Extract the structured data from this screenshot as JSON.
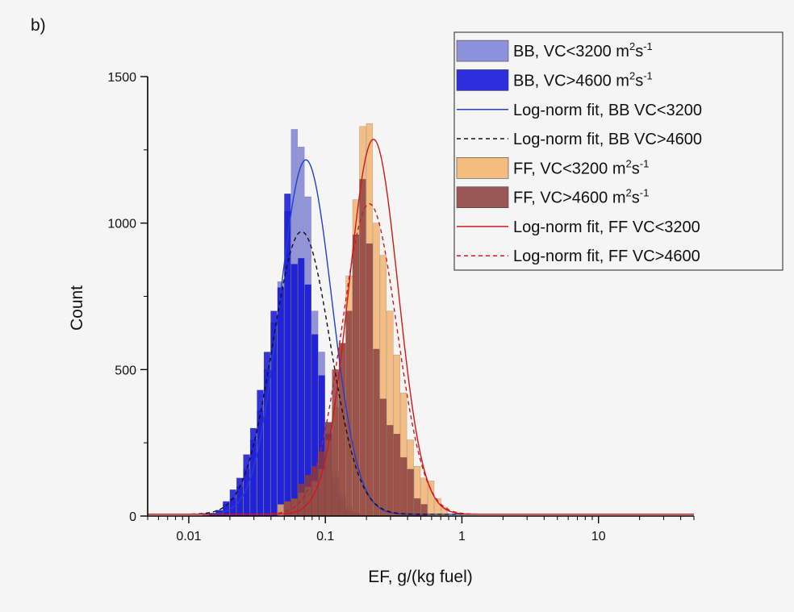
{
  "panel_label": "b)",
  "chart_data": {
    "type": "bar",
    "xscale": "log",
    "xlabel": "EF, g/(kg fuel)",
    "ylabel": "Count",
    "xlim": [
      0.005,
      50
    ],
    "ylim": [
      0,
      1500
    ],
    "xticks": [
      {
        "value": 0.01,
        "label": "0.01"
      },
      {
        "value": 0.1,
        "label": "0.1"
      },
      {
        "value": 1,
        "label": "1"
      },
      {
        "value": 10,
        "label": "10"
      }
    ],
    "yticks": [
      {
        "value": 0,
        "label": "0"
      },
      {
        "value": 500,
        "label": "500"
      },
      {
        "value": 1000,
        "label": "1000"
      },
      {
        "value": 1500,
        "label": "1500"
      }
    ],
    "grid": false,
    "legend_position": "top-right",
    "bin_edges": [
      0.0126,
      0.0141,
      0.0158,
      0.0178,
      0.02,
      0.0224,
      0.0251,
      0.0282,
      0.0316,
      0.0355,
      0.0398,
      0.0447,
      0.0501,
      0.0562,
      0.0631,
      0.0708,
      0.0794,
      0.0891,
      0.1,
      0.1122,
      0.1259,
      0.1413,
      0.1585,
      0.1778,
      0.1995,
      0.2239,
      0.2512,
      0.2818,
      0.3162,
      0.3548,
      0.3981,
      0.4467,
      0.5012,
      0.5623,
      0.631,
      0.7079,
      0.7943,
      0.8913,
      1.0
    ],
    "histograms": [
      {
        "name": "BB, VC<3200 m²s⁻¹",
        "color": "#7b7fd6",
        "counts": [
          10,
          10,
          20,
          40,
          60,
          100,
          160,
          260,
          360,
          500,
          660,
          800,
          1040,
          1320,
          1260,
          1090,
          700,
          560,
          320,
          150,
          80,
          30,
          10,
          5,
          0,
          0,
          0,
          0,
          0,
          0,
          0,
          0,
          0,
          0,
          0,
          0,
          0,
          0
        ]
      },
      {
        "name": "BB, VC>4600 m²s⁻¹",
        "color": "#0a0ad8",
        "counts": [
          0,
          10,
          20,
          50,
          90,
          130,
          210,
          300,
          430,
          560,
          700,
          780,
          1100,
          860,
          880,
          790,
          620,
          480,
          280,
          130,
          60,
          20,
          10,
          0,
          0,
          0,
          0,
          0,
          0,
          0,
          0,
          0,
          0,
          0,
          0,
          0,
          0,
          0
        ]
      },
      {
        "name": "FF, VC<3200 m²s⁻¹",
        "color": "#f4b16a",
        "counts": [
          0,
          0,
          0,
          0,
          0,
          0,
          0,
          0,
          0,
          0,
          0,
          40,
          50,
          60,
          80,
          100,
          120,
          160,
          260,
          370,
          590,
          820,
          1080,
          1330,
          1340,
          1000,
          890,
          700,
          550,
          420,
          260,
          170,
          130,
          120,
          60,
          30,
          0,
          0
        ]
      },
      {
        "name": "FF, VC>4600 m²s⁻¹",
        "color": "#8b3a3a",
        "counts": [
          0,
          0,
          0,
          0,
          0,
          0,
          0,
          0,
          0,
          0,
          0,
          0,
          50,
          60,
          110,
          140,
          170,
          220,
          320,
          500,
          590,
          700,
          960,
          1150,
          930,
          570,
          400,
          310,
          280,
          200,
          160,
          60,
          40,
          0,
          0,
          0,
          0,
          0
        ]
      }
    ],
    "fits": [
      {
        "name": "Log-norm fit, BB VC<3200",
        "color": "#1f3fd6",
        "dash": "solid",
        "peak": 1210,
        "center": 0.072,
        "sigma": 0.19
      },
      {
        "name": "Log-norm fit, BB VC>4600",
        "color": "#111111",
        "dash": "dashed",
        "peak": 965,
        "center": 0.067,
        "sigma": 0.21
      },
      {
        "name": "Log-norm fit, FF VC<3200",
        "color": "#d01818",
        "dash": "solid",
        "peak": 1280,
        "center": 0.225,
        "sigma": 0.18
      },
      {
        "name": "Log-norm fit, FF VC>4600",
        "color": "#d01818",
        "dash": "dashed",
        "peak": 1060,
        "center": 0.21,
        "sigma": 0.2
      }
    ],
    "legend": [
      {
        "kind": "box",
        "color": "#7b7fd6",
        "text": "BB, VC<3200 m",
        "sup1": "2",
        "mid": "s",
        "sup2": "-1"
      },
      {
        "kind": "box",
        "color": "#0a0ad8",
        "text": "BB, VC>4600 m",
        "sup1": "2",
        "mid": "s",
        "sup2": "-1"
      },
      {
        "kind": "line",
        "color": "#1f3fd6",
        "dash": "solid",
        "text": "Log-norm fit, BB VC<3200"
      },
      {
        "kind": "line",
        "color": "#111111",
        "dash": "dashed",
        "text": "Log-norm fit, BB VC>4600"
      },
      {
        "kind": "box",
        "color": "#f4b16a",
        "text": "FF, VC<3200 m",
        "sup1": "2",
        "mid": "s",
        "sup2": "-1"
      },
      {
        "kind": "box",
        "color": "#8b3a3a",
        "text": "FF, VC>4600 m",
        "sup1": "2",
        "mid": "s",
        "sup2": "-1"
      },
      {
        "kind": "line",
        "color": "#d01818",
        "dash": "solid",
        "text": "Log-norm fit, FF VC<3200"
      },
      {
        "kind": "line",
        "color": "#d01818",
        "dash": "dashed",
        "text": "Log-norm fit, FF VC>4600"
      }
    ]
  }
}
